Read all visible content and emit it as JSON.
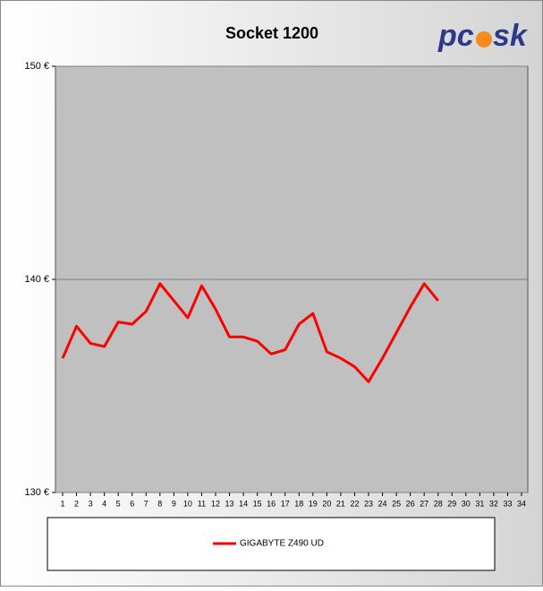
{
  "chart_data": {
    "type": "line",
    "title": "Socket 1200",
    "logo": [
      "pc",
      "sk"
    ],
    "categories": [
      "1",
      "2",
      "3",
      "4",
      "5",
      "6",
      "7",
      "8",
      "9",
      "10",
      "11",
      "12",
      "13",
      "14",
      "15",
      "16",
      "17",
      "18",
      "19",
      "20",
      "21",
      "22",
      "23",
      "24",
      "25",
      "26",
      "27",
      "28",
      "29",
      "30",
      "31",
      "32",
      "33",
      "34"
    ],
    "series": [
      {
        "name": "GIGABYTE Z490 UD",
        "color": "#ff0000",
        "values": [
          136.3,
          137.8,
          137.0,
          136.85,
          138.0,
          137.9,
          138.5,
          139.8,
          139.0,
          138.2,
          139.7,
          138.6,
          137.3,
          137.3,
          137.1,
          136.5,
          136.7,
          137.9,
          138.4,
          136.6,
          136.3,
          135.9,
          135.2,
          136.3,
          137.5,
          138.7,
          139.8,
          139.0,
          null,
          null,
          null,
          null,
          null,
          null
        ]
      }
    ],
    "ylim": [
      130,
      150
    ],
    "yticks": [
      {
        "value": 130,
        "label": "130 €"
      },
      {
        "value": 140,
        "label": "140 €"
      },
      {
        "value": 150,
        "label": "150 €"
      }
    ],
    "grid": true
  }
}
